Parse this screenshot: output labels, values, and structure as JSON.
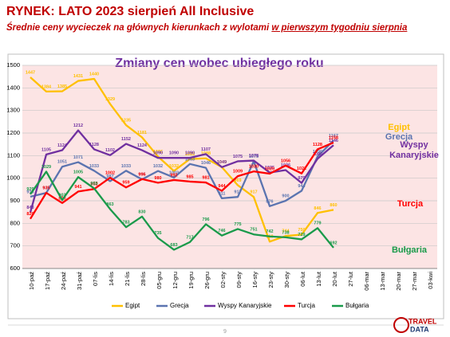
{
  "header": {
    "title": "RYNEK: LATO 2023 sierpień All Inclusive",
    "subtitle": "Średnie ceny wycieczek na głównych kierunkach z wylotami",
    "subtitle_emphasis": "w pierwszym tygodniu sierpnia"
  },
  "chart_data": {
    "type": "line",
    "title": "Zmiany cen wobec ubiegłego roku",
    "categories": [
      "10-paź",
      "17-paź",
      "24-paź",
      "31-paź",
      "07-lis",
      "14-lis",
      "21-lis",
      "28-lis",
      "05-gru",
      "12-gru",
      "19-gru",
      "26-gru",
      "02-sty",
      "09-sty",
      "16-sty",
      "23-sty",
      "30-sty",
      "06-lut",
      "13-lut",
      "20-lut",
      "27-lut",
      "06-mar",
      "13-mar",
      "20-mar",
      "27-mar",
      "03-kwi"
    ],
    "series": [
      {
        "name": "Egipt",
        "color": "#ffc000",
        "values": [
          1447,
          1384,
          1385,
          1431,
          1440,
          1329,
          1235,
          1181,
          1096,
          1032,
          1085,
          1088,
          1049,
          969,
          917,
          719,
          744,
          750,
          846,
          860,
          null,
          null,
          null,
          null,
          null,
          null
        ]
      },
      {
        "name": "Grecja",
        "color": "#5b74b0",
        "values": [
          918,
          935,
          1051,
          1071,
          1033,
          987,
          1033,
          995,
          1032,
          1003,
          1063,
          1046,
          911,
          917,
          1075,
          876,
          900,
          944,
          1096,
          1167,
          null,
          null,
          null,
          null,
          null,
          null
        ]
      },
      {
        "name": "Wyspy Kanaryjskie",
        "color": "#7030a0",
        "values": [
          848,
          1105,
          1124,
          1212,
          1128,
          1102,
          1152,
          1124,
          1090,
          1090,
          1090,
          1107,
          1049,
          1075,
          1078,
          1025,
          1036,
          979,
          1086,
          1146,
          null,
          null,
          null,
          null,
          null,
          null
        ]
      },
      {
        "name": "Turcja",
        "color": "#ff0000",
        "values": [
          820,
          935,
          890,
          941,
          952,
          1002,
          959,
          996,
          980,
          992,
          985,
          981,
          944,
          1009,
          1030,
          1020,
          1056,
          1021,
          1128,
          1158,
          null,
          null,
          null,
          null,
          null,
          null
        ]
      },
      {
        "name": "Bułgaria",
        "color": "#1a9a4a",
        "values": [
          929,
          1029,
          903,
          1005,
          955,
          863,
          783,
          830,
          735,
          683,
          717,
          796,
          746,
          775,
          751,
          742,
          738,
          729,
          779,
          692,
          null,
          null,
          null,
          null,
          null,
          null
        ]
      }
    ],
    "ylim": [
      600,
      1500
    ],
    "yticks": [
      600,
      700,
      800,
      900,
      1000,
      1100,
      1200,
      1300,
      1400,
      1500
    ],
    "grid": true
  },
  "footer": {
    "page_number": "9",
    "logo_top": "TRAVEL",
    "logo_bottom": "DATA"
  }
}
